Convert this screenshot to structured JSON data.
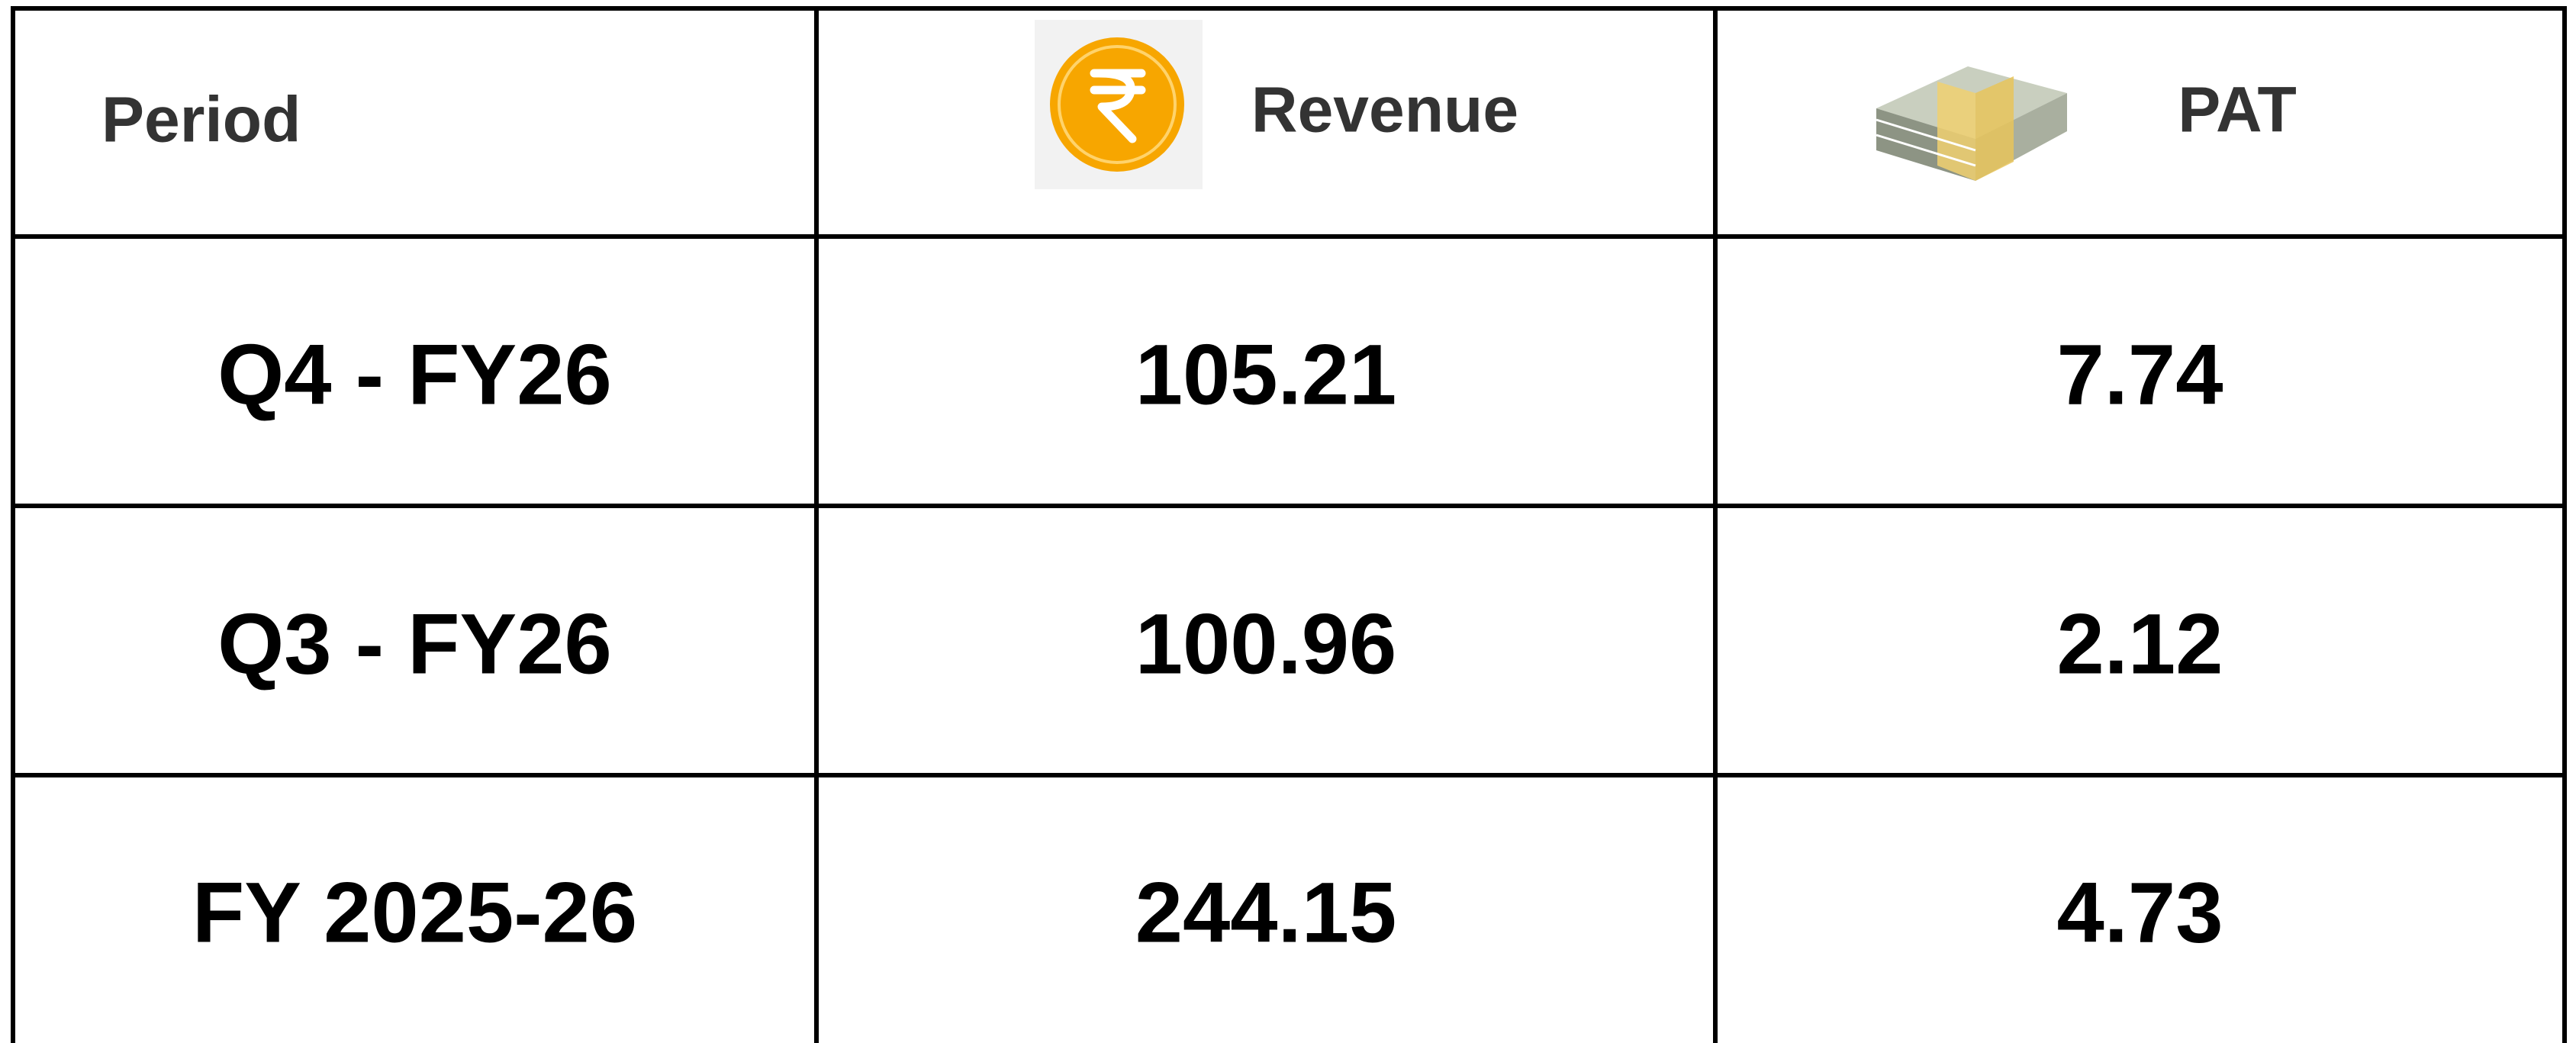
{
  "table": {
    "header": [
      "Period",
      "Revenue",
      "PAT"
    ],
    "rows": [
      [
        "Q4 - FY26",
        "105.21",
        "7.74"
      ],
      [
        "Q3 - FY26",
        "100.96",
        "2.12"
      ],
      [
        "FY 2025-26",
        "244.15",
        "4.73"
      ]
    ]
  }
}
